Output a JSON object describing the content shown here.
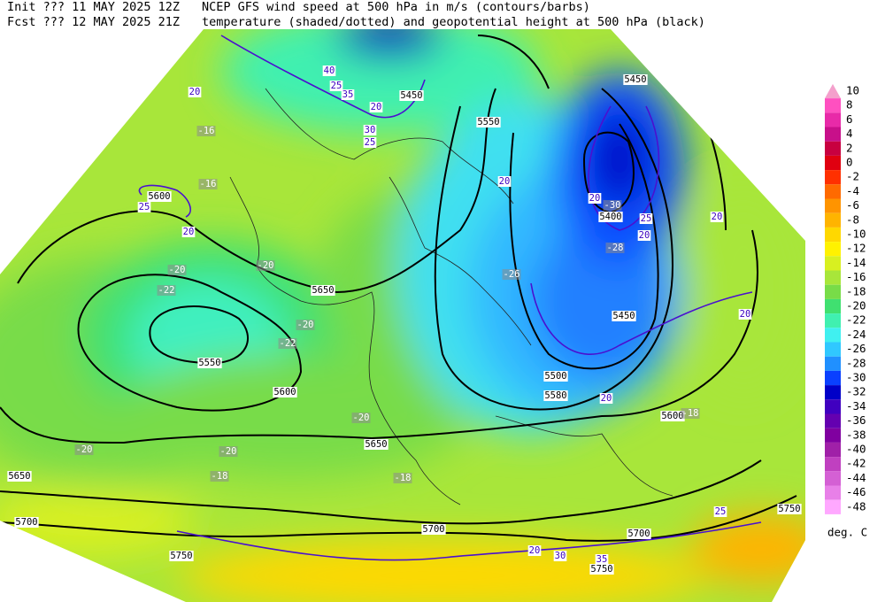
{
  "header": {
    "init_left": "Init  ??? 11 MAY 2025 12Z",
    "init_right": "NCEP GFS wind speed at 500 hPa in m/s (contours/barbs)",
    "fcst_left": "Fcst ??? 12 MAY 2025 21Z",
    "fcst_right": "temperature (shaded/dotted) and geopotential height at 500 hPa (black)"
  },
  "colorbar": {
    "unit": "deg. C",
    "entries": [
      {
        "label": "10",
        "color": "#f4a0cc"
      },
      {
        "label": "8",
        "color": "#ff50c0"
      },
      {
        "label": "6",
        "color": "#e82aa8"
      },
      {
        "label": "4",
        "color": "#c8108a"
      },
      {
        "label": "2",
        "color": "#c80040"
      },
      {
        "label": "0",
        "color": "#e00010"
      },
      {
        "label": "-2",
        "color": "#ff3000"
      },
      {
        "label": "-4",
        "color": "#ff6a00"
      },
      {
        "label": "-6",
        "color": "#ff9400"
      },
      {
        "label": "-8",
        "color": "#ffb400"
      },
      {
        "label": "-10",
        "color": "#ffd800"
      },
      {
        "label": "-12",
        "color": "#fff200"
      },
      {
        "label": "-14",
        "color": "#d8f020"
      },
      {
        "label": "-16",
        "color": "#a8e63a"
      },
      {
        "label": "-18",
        "color": "#78dc48"
      },
      {
        "label": "-20",
        "color": "#40e070"
      },
      {
        "label": "-22",
        "color": "#40f0b0"
      },
      {
        "label": "-24",
        "color": "#40f0f0"
      },
      {
        "label": "-26",
        "color": "#30c8ff"
      },
      {
        "label": "-28",
        "color": "#2090ff"
      },
      {
        "label": "-30",
        "color": "#0a40ff"
      },
      {
        "label": "-32",
        "color": "#0000c8"
      },
      {
        "label": "-34",
        "color": "#4000c0"
      },
      {
        "label": "-36",
        "color": "#6400b0"
      },
      {
        "label": "-38",
        "color": "#8000a0"
      },
      {
        "label": "-40",
        "color": "#a020a8"
      },
      {
        "label": "-42",
        "color": "#c040c0"
      },
      {
        "label": "-44",
        "color": "#d460d4"
      },
      {
        "label": "-46",
        "color": "#e880e8"
      },
      {
        "label": "-48",
        "color": "#ffa8ff"
      }
    ]
  },
  "map": {
    "height_labels": [
      "5450",
      "5450",
      "5550",
      "5650",
      "5550",
      "5600",
      "5400",
      "5450",
      "5500",
      "5580",
      "5600",
      "5650",
      "5650",
      "5700",
      "5700",
      "5750",
      "5750",
      "5700",
      "5750",
      "5600"
    ],
    "temperature_labels": [
      "-16",
      "-16",
      "-20",
      "-22",
      "-20",
      "-22",
      "-20",
      "-20",
      "-20",
      "-18",
      "-18",
      "-18",
      "-28",
      "-30",
      "-26",
      "-20"
    ],
    "wind_labels": [
      "20",
      "25",
      "40",
      "35",
      "30",
      "25",
      "20",
      "20",
      "20",
      "20",
      "25",
      "20",
      "20",
      "20",
      "25",
      "30",
      "35",
      "20",
      "25",
      "20"
    ]
  }
}
